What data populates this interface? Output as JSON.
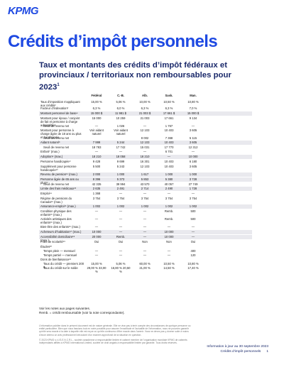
{
  "logo": "KPMG",
  "title": "Crédits d’impôt personnels",
  "subtitle": "Taux et montants des crédits d’impôt fédéraux et provinciaux / territoriaux non remboursables pour 2023",
  "subtitle_sup": "1",
  "columns": [
    "Fédéral",
    "C.-B.",
    "Alb.",
    "Sask.",
    "Man."
  ],
  "rows": [
    {
      "label": "Taux d’imposition s’appliquant aux crédits²",
      "values": [
        "15,00 %",
        "5,06 %",
        "10,00 %",
        "10,50 %",
        "10,80 %"
      ]
    },
    {
      "label": "Facteur d’indexation³",
      "values": [
        "6,3 %",
        "6,0 %",
        "6,3 %",
        "6,3 %",
        "7,0 %"
      ]
    },
    {
      "label": "Montant personnel de base⁴",
      "values": [
        "15 000 $",
        "11 981 $",
        "21 003 $",
        "17 661 $",
        "15 000 $"
      ]
    },
    {
      "label": "Montant pour époux / conjoint de fait et personne à charge admissible⁵",
      "values": [
        "15 000",
        "10 259",
        "21 003",
        "17 661",
        "9 134"
      ]
    },
    {
      "label": "Seuil de revenu net",
      "indent": true,
      "values": [
        "—",
        "1 026",
        "—",
        "1 767",
        "—"
      ]
    },
    {
      "label": "Montant pour personne à charge âgée de 18 ans ou plus et handicapée",
      "values": [
        "Voir aidant naturel",
        "Voir aidant naturel",
        "12 103",
        "10 403",
        "3 605"
      ]
    },
    {
      "label": "Seuil de revenu net",
      "indent": true,
      "values": [
        "",
        "",
        "8 002",
        "7 368",
        "5 115"
      ]
    },
    {
      "label": "Aidant naturel⁶",
      "values": [
        "7 999",
        "5 244",
        "12 103",
        "10 403",
        "3 605"
      ]
    },
    {
      "label": "Seuil de revenu net",
      "indent": true,
      "values": [
        "18 783",
        "17 742",
        "15 031",
        "17 770",
        "12 312"
      ]
    },
    {
      "label": "Enfant⁷ (max.)",
      "values": [
        "—",
        "—",
        "—",
        "6 701",
        "—"
      ]
    },
    {
      "label": "Adoption⁸ (max.)",
      "values": [
        "18 210",
        "18 058",
        "18 210",
        "—",
        "10 000"
      ]
    },
    {
      "label": "Personne handicapée⁹",
      "values": [
        "9 428",
        "9 699",
        "16 301",
        "10 403",
        "6 180"
      ]
    },
    {
      "label": "Supplément pour personne handicapée¹⁰",
      "values": [
        "5 500",
        "5 243",
        "12 103",
        "10 403",
        "3 605"
      ]
    },
    {
      "label": "Revenu de pension¹¹ (max.)",
      "values": [
        "2 000",
        "1 000",
        "1 617",
        "1 000",
        "1 000"
      ]
    },
    {
      "label": "Personne âgée de 65 ans ou plus¹²",
      "values": [
        "8 396",
        "5 373",
        "5 853",
        "5 380",
        "3 728"
      ]
    },
    {
      "label": "Seuil de revenu net",
      "indent": true,
      "values": [
        "42 335",
        "39 994",
        "43 570",
        "40 057",
        "27 749"
      ]
    },
    {
      "label": "Limite des frais médicaux¹³",
      "values": [
        "2 635",
        "2 491",
        "2 714",
        "2 490",
        "1 728"
      ]
    },
    {
      "label": "Emploi¹⁴",
      "values": [
        "1 368",
        "—",
        "—",
        "—",
        "—"
      ]
    },
    {
      "label": "Régime de pensions du Canada¹⁵ (max.)",
      "values": [
        "3 754",
        "3 754",
        "3 754",
        "3 754",
        "3 754"
      ]
    },
    {
      "label": "Assurance-emploi¹⁵ (max.)",
      "values": [
        "1 002",
        "1 002",
        "1 002",
        "1 002",
        "1 002"
      ]
    },
    {
      "label": "Condition physique des enfants¹⁶ (max.)",
      "values": [
        "—",
        "—",
        "—",
        "Remb.",
        "500"
      ]
    },
    {
      "label": "Activités artistiques des enfants¹⁶ (max.)",
      "values": [
        "—",
        "—",
        "—",
        "Remb.",
        "500"
      ]
    },
    {
      "label": "Bien-être des enfants¹⁶ (max.)",
      "values": [
        "—",
        "—",
        "—",
        "—",
        "—"
      ]
    },
    {
      "label": "Acheteurs d’habitation¹⁷ (max.)",
      "values": [
        "10 000",
        "—",
        "—",
        "10 000",
        "—"
      ]
    },
    {
      "label": "Accessibilité domiciliaire¹⁸ (max.)",
      "values": [
        "20 000",
        "Remb.",
        "—",
        "10 000",
        "—"
      ]
    },
    {
      "label": "Frais de scolarité¹⁹",
      "values": [
        "Oui",
        "Oui",
        "Non",
        "Non",
        "Oui"
      ]
    },
    {
      "label": "Études²⁰",
      "values": [
        "",
        "",
        "",
        "",
        ""
      ]
    },
    {
      "label": "Temps plein — mensuel",
      "indent": true,
      "values": [
        "—",
        "—",
        "—",
        "—",
        "400"
      ]
    },
    {
      "label": "Temps partiel — mensuel",
      "indent": true,
      "values": [
        "—",
        "—",
        "—",
        "—",
        "120"
      ]
    },
    {
      "label": "Dons de bienfaisance²¹",
      "values": [
        "",
        "",
        "",
        "",
        ""
      ]
    },
    {
      "label": "Taux du crédit — premiers 200 $",
      "indent": true,
      "values": [
        "15,00 %",
        "5,06 %",
        "60,00 %",
        "10,50 %",
        "10,80 %"
      ]
    },
    {
      "label": "Taux du crédit sur le solde",
      "indent": true,
      "values": [
        "29,00 % 33,00 %",
        "16,80 % 20,50 %",
        "21,00 %",
        "14,50 %",
        "17,40 %"
      ]
    }
  ],
  "notes_line1": "Voir les notes aux pages suivantes.",
  "notes_line2": "Remb. = crédit remboursable (voir la note correspondante).",
  "fine_print_1": "L’information publiée dans le présent document est de nature générale. Elle ne vise pas à tenir compte des circonstances de quelque personne ou entité particulière. Bien que nous fassions tout en notre possible pour assurer l’exactitude et l’actualité de l’information, nous ne pouvons garantir qu’elle sera exacte à la date à laquelle elle est reçue ou qu’elle continuera d’être exacte dans l’avenir. Vous ne devez pas y donner suite à moins d’avoir obtenu un avis professionnel découlant d’un examen approfondi de la situation en question.",
  "fine_print_2": "© 2023 KPMG s.r.l./S.E.N.C.R.L., société canadienne à responsabilité limitée et cabinet membre de l’organisation mondiale KPMG de cabinets indépendants affiliés à KPMG International Limited, société de droit anglais à responsabilité limitée par garantie. Tous droits réservés.",
  "footer_date": "Information à jour au 30 septembre 2023",
  "footer_title": "Crédits d’impôt personnels",
  "footer_page": "1"
}
